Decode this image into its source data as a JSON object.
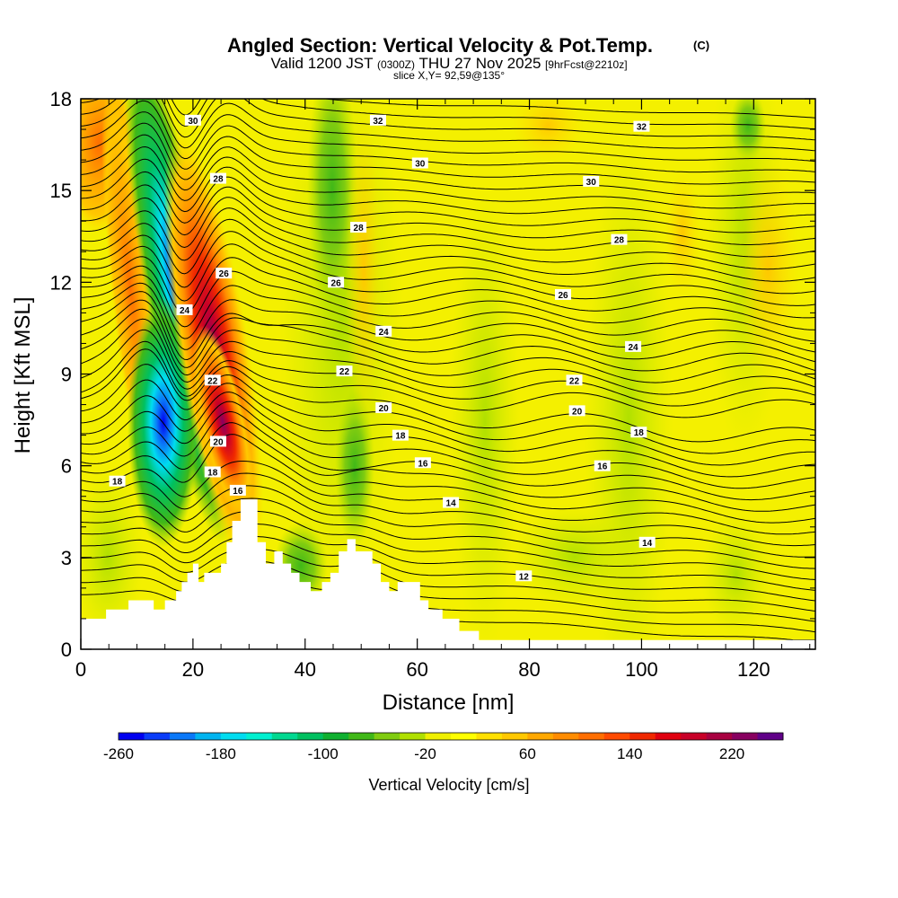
{
  "chart_data": {
    "type": "heatmap",
    "title": "Angled Section: Vertical Velocity & Pot.Temp.",
    "title_units": "(C)",
    "subtitle_prefix": "Valid 1200 JST",
    "subtitle_utc": "(0300Z)",
    "subtitle_date": "THU 27 Nov 2025",
    "subtitle_fcst": "[9hrFcst@2210z]",
    "slice_info": "slice X,Y= 92,59@135°",
    "xlabel": "Distance [nm]",
    "ylabel": "Height [Kft MSL]",
    "xlim": [
      0,
      131
    ],
    "ylim": [
      0,
      18
    ],
    "x_ticks": [
      0,
      20,
      40,
      60,
      80,
      100,
      120
    ],
    "y_ticks": [
      0,
      3,
      6,
      9,
      12,
      15,
      18
    ],
    "colorbar": {
      "title": "Vertical Velocity [cm/s]",
      "min": -260,
      "max": 260,
      "tick_labels": [
        -260,
        -180,
        -100,
        -20,
        60,
        140,
        220
      ],
      "colors": [
        "#0000f0",
        "#0a3cf8",
        "#0a78f8",
        "#00b4f0",
        "#00dcf0",
        "#00f0d0",
        "#00d890",
        "#00c060",
        "#10b030",
        "#40b818",
        "#80cc10",
        "#b0e000",
        "#f0f000",
        "#ffff00",
        "#ffe000",
        "#ffc800",
        "#ffa800",
        "#ff8c00",
        "#ff6e00",
        "#ff4a00",
        "#f02800",
        "#e00010",
        "#c80028",
        "#a80040",
        "#880060",
        "#600088"
      ]
    },
    "features": [
      {
        "kind": "downdraft",
        "x_center_nm": 15,
        "z_center_kft": 8,
        "peak_cm_s": -250
      },
      {
        "kind": "updraft",
        "x_center_nm": 24,
        "z_center_kft": 9,
        "peak_cm_s": 230
      },
      {
        "kind": "updraft",
        "x_center_nm": 9,
        "z_center_kft": 14,
        "peak_cm_s": 140
      }
    ],
    "theta_contours": {
      "units": "C",
      "levels": [
        12,
        14,
        16,
        18,
        20,
        22,
        24,
        26,
        28,
        30,
        32
      ],
      "label_points": [
        {
          "x": 20,
          "z": 17.3,
          "label": "30"
        },
        {
          "x": 53,
          "z": 17.3,
          "label": "32"
        },
        {
          "x": 100,
          "z": 17.1,
          "label": "32"
        },
        {
          "x": 24.5,
          "z": 15.4,
          "label": "28"
        },
        {
          "x": 60.5,
          "z": 15.9,
          "label": "30"
        },
        {
          "x": 91,
          "z": 15.3,
          "label": "30"
        },
        {
          "x": 49.5,
          "z": 13.8,
          "label": "28"
        },
        {
          "x": 96,
          "z": 13.4,
          "label": "28"
        },
        {
          "x": 25.5,
          "z": 12.3,
          "label": "26"
        },
        {
          "x": 45.5,
          "z": 12.0,
          "label": "26"
        },
        {
          "x": 86,
          "z": 11.6,
          "label": "26"
        },
        {
          "x": 18.5,
          "z": 11.1,
          "label": "24"
        },
        {
          "x": 54,
          "z": 10.4,
          "label": "24"
        },
        {
          "x": 98.5,
          "z": 9.9,
          "label": "24"
        },
        {
          "x": 23.5,
          "z": 8.8,
          "label": "22"
        },
        {
          "x": 47,
          "z": 9.1,
          "label": "22"
        },
        {
          "x": 88,
          "z": 8.8,
          "label": "22"
        },
        {
          "x": 54,
          "z": 7.9,
          "label": "20"
        },
        {
          "x": 88.5,
          "z": 7.8,
          "label": "20"
        },
        {
          "x": 24.5,
          "z": 6.8,
          "label": "20"
        },
        {
          "x": 57,
          "z": 7.0,
          "label": "18"
        },
        {
          "x": 99.5,
          "z": 7.1,
          "label": "18"
        },
        {
          "x": 6.5,
          "z": 5.5,
          "label": "18"
        },
        {
          "x": 23.5,
          "z": 5.8,
          "label": "18"
        },
        {
          "x": 61,
          "z": 6.1,
          "label": "16"
        },
        {
          "x": 93,
          "z": 6.0,
          "label": "16"
        },
        {
          "x": 28,
          "z": 5.2,
          "label": "16"
        },
        {
          "x": 66,
          "z": 4.8,
          "label": "14"
        },
        {
          "x": 101,
          "z": 3.5,
          "label": "14"
        },
        {
          "x": 79,
          "z": 2.4,
          "label": "12"
        }
      ]
    },
    "terrain_profile": {
      "units": "kft",
      "x": [
        0,
        4.5,
        4.5,
        8.5,
        8.5,
        13,
        13,
        15,
        15,
        17,
        17,
        18,
        18,
        19,
        19,
        20,
        20,
        21,
        21,
        22,
        22,
        25,
        25,
        26,
        26,
        27,
        27,
        28.5,
        28.5,
        31.5,
        31.5,
        33,
        33,
        34.5,
        34.5,
        36,
        36,
        37.5,
        37.5,
        39,
        39,
        41,
        41,
        43,
        43,
        44.5,
        44.5,
        46,
        46,
        47.5,
        47.5,
        49,
        49,
        52,
        52,
        53.5,
        53.5,
        55,
        55,
        56.5,
        56.5,
        60.5,
        60.5,
        62,
        62,
        64.5,
        64.5,
        67.5,
        67.5,
        71,
        71,
        131
      ],
      "z": [
        1.0,
        1.0,
        1.3,
        1.3,
        1.6,
        1.6,
        1.3,
        1.3,
        1.6,
        1.6,
        1.9,
        1.9,
        2.2,
        2.2,
        2.5,
        2.5,
        2.8,
        2.8,
        2.2,
        2.2,
        2.5,
        2.5,
        2.8,
        2.8,
        3.5,
        3.5,
        4.2,
        4.2,
        4.9,
        4.9,
        3.5,
        3.5,
        2.8,
        2.8,
        3.2,
        3.2,
        2.8,
        2.8,
        2.5,
        2.5,
        2.2,
        2.2,
        1.9,
        1.9,
        2.2,
        2.2,
        2.5,
        2.5,
        3.2,
        3.2,
        3.6,
        3.6,
        3.2,
        3.2,
        2.8,
        2.8,
        2.2,
        2.2,
        1.9,
        1.9,
        2.2,
        2.2,
        1.6,
        1.6,
        1.3,
        1.3,
        1.0,
        1.0,
        0.6,
        0.6,
        0.3,
        0.3
      ]
    }
  }
}
